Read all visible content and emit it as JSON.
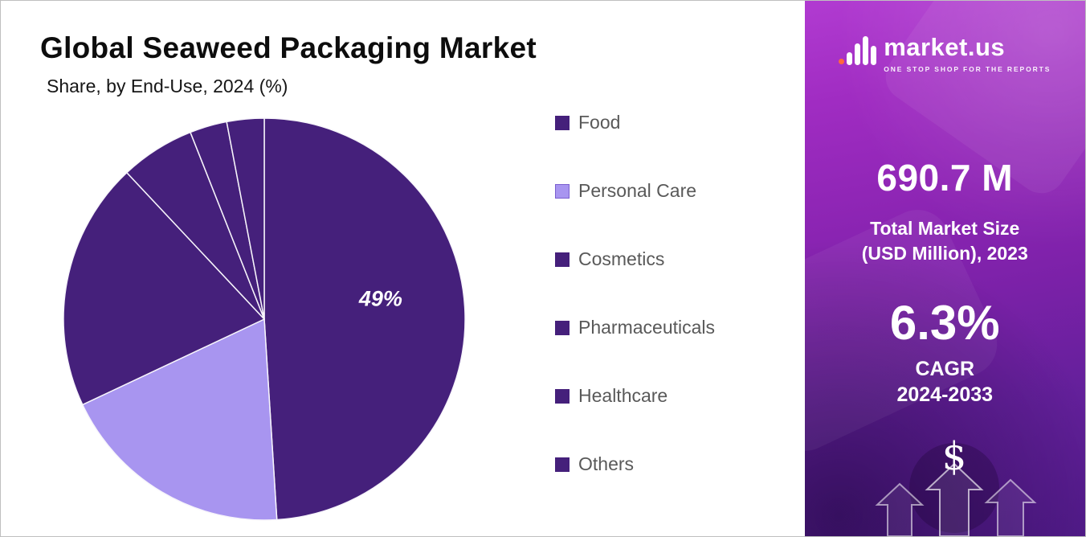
{
  "header": {
    "title": "Global Seaweed Packaging Market",
    "subtitle": "Share, by End-Use, 2024 (%)"
  },
  "chart_data": {
    "type": "pie",
    "title": "Global Seaweed Packaging Market",
    "subtitle": "Share, by End-Use, 2024 (%)",
    "unit": "%",
    "start_position": "top",
    "direction": "clockwise",
    "legend_position": "right",
    "categories": [
      "Food",
      "Personal Care",
      "Cosmetics",
      "Pharmaceuticals",
      "Healthcare",
      "Others"
    ],
    "values": [
      49,
      19,
      20,
      6,
      3,
      3
    ],
    "colors": [
      "#45207b",
      "#a895f0",
      "#45207b",
      "#45207b",
      "#45207b",
      "#45207b"
    ],
    "slice_label": {
      "category": "Food",
      "text": "49%"
    }
  },
  "legend": {
    "items": [
      {
        "label": "Food",
        "swatch": "#45207b",
        "border": "#45207b"
      },
      {
        "label": "Personal Care",
        "swatch": "#a895f0",
        "border": "#7a5fd0"
      },
      {
        "label": "Cosmetics",
        "swatch": "#45207b",
        "border": "#45207b"
      },
      {
        "label": "Pharmaceuticals",
        "swatch": "#45207b",
        "border": "#45207b"
      },
      {
        "label": "Healthcare",
        "swatch": "#45207b",
        "border": "#45207b"
      },
      {
        "label": "Others",
        "swatch": "#45207b",
        "border": "#45207b"
      }
    ]
  },
  "sidebar": {
    "brand": {
      "name": "market.us",
      "tagline": "ONE STOP SHOP FOR THE REPORTS"
    },
    "market_size": {
      "value": "690.7 M",
      "label1": "Total Market Size",
      "label2": "(USD Million), 2023"
    },
    "cagr": {
      "value": "6.3%",
      "label1": "CAGR",
      "label2": "2024-2033"
    },
    "currency_symbol": "$"
  },
  "colors": {
    "slice_dark": "#45207b",
    "slice_light": "#a895f0",
    "legend_text": "#595959",
    "panel_top": "#b13bd1",
    "panel_bottom": "#521b8a"
  }
}
